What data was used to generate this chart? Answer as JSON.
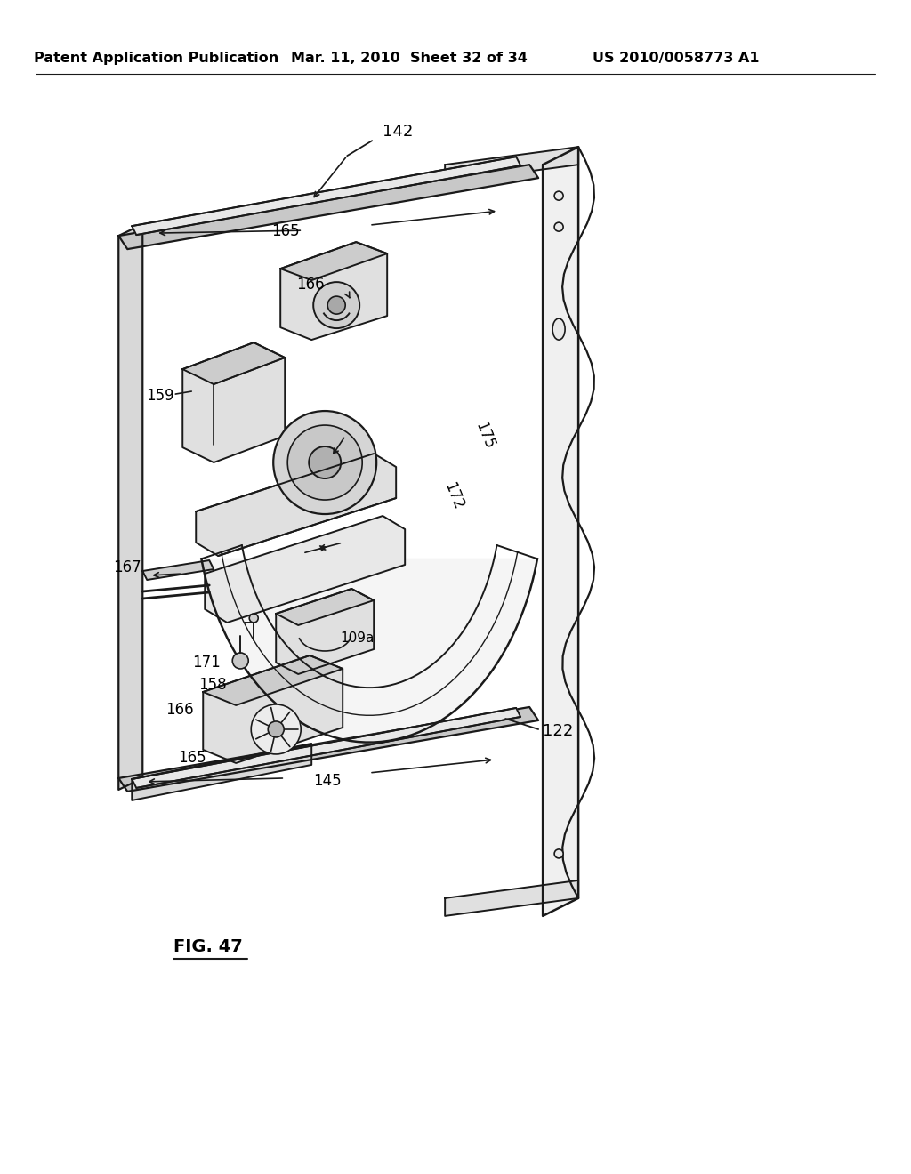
{
  "background_color": "#ffffff",
  "header_left": "Patent Application Publication",
  "header_mid": "Mar. 11, 2010  Sheet 32 of 34",
  "header_right": "US 2010/0058773 A1",
  "line_color": "#1a1a1a",
  "light_gray": "#d8d8d8",
  "mid_gray": "#b8b8b8",
  "dark_gray": "#888888"
}
